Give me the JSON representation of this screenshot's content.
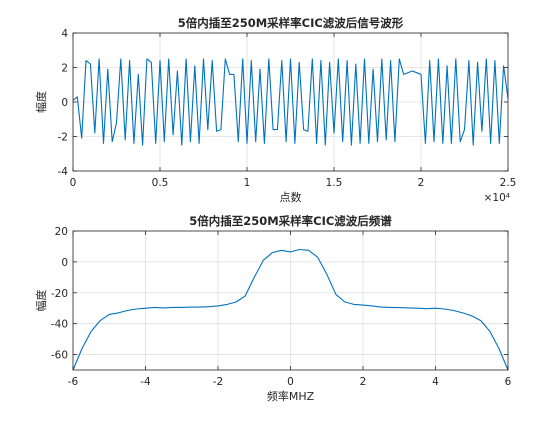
{
  "chart_data": [
    {
      "type": "line",
      "title": "5倍内插至250M采样率CIC滤波后信号波形",
      "xlabel": "点数",
      "ylabel": "幅度",
      "x_exponent_label": "×10⁴",
      "xlim": [
        0,
        25000
      ],
      "ylim": [
        -4,
        4
      ],
      "x_ticks": [
        0,
        5000,
        10000,
        15000,
        20000,
        25000
      ],
      "x_tick_labels": [
        "0",
        "0.5",
        "1",
        "1.5",
        "2",
        "2.5"
      ],
      "y_ticks": [
        -4,
        -2,
        0,
        2,
        4
      ],
      "y_tick_labels": [
        "-4",
        "-2",
        "0",
        "2",
        "4"
      ],
      "grid": true,
      "series_color": "#0072BD",
      "series": [
        {
          "description": "oscillating waveform between about -2.5 and 2.5, near 0 for x<500, with short flat segments near ±1.6",
          "x": [
            0,
            250,
            500,
            750,
            1000,
            1250,
            1500,
            1750,
            2000,
            2250,
            2500,
            2750,
            3000,
            3250,
            3500,
            3750,
            4000,
            4250,
            4500,
            4750,
            5000,
            5250,
            5500,
            5750,
            6000,
            6250,
            6500,
            6750,
            7000,
            7250,
            7500,
            7750,
            8000,
            8250,
            8500,
            8750,
            9000,
            9250,
            9500,
            9750,
            10000,
            10250,
            10500,
            10750,
            11000,
            11250,
            11500,
            11750,
            12000,
            12250,
            12500,
            12750,
            13000,
            13250,
            13500,
            13750,
            14000,
            14250,
            14500,
            14750,
            15000,
            15250,
            15500,
            15750,
            16000,
            16250,
            16500,
            16750,
            17000,
            17250,
            17500,
            17750,
            18000,
            18250,
            18500,
            18750,
            19000,
            19250,
            19500,
            19750,
            20000,
            20250,
            20500,
            20750,
            21000,
            21250,
            21500,
            21750,
            22000,
            22250,
            22500,
            22750,
            23000,
            23250,
            23500,
            23750,
            24000,
            24250,
            24500,
            24750,
            25000
          ],
          "y": [
            0.1,
            0.3,
            -2.1,
            2.4,
            2.2,
            -1.8,
            2.5,
            -2.4,
            1.9,
            -2.3,
            -1.2,
            2.5,
            -2.2,
            2.4,
            -2.4,
            1.6,
            -2.5,
            2.5,
            2.3,
            -2.4,
            2.4,
            -2.3,
            2.5,
            -1.9,
            1.8,
            -2.5,
            2.5,
            -2.3,
            2.1,
            -2.4,
            2.5,
            -1.6,
            2.4,
            -1.7,
            -1.6,
            2.5,
            1.6,
            1.6,
            -2.3,
            2.5,
            -2.4,
            2.4,
            -2.3,
            1.9,
            -2.4,
            2.5,
            -1.6,
            -1.6,
            2.4,
            -2.3,
            2.5,
            -2.4,
            2.3,
            -1.6,
            -1.7,
            2.5,
            -2.4,
            2.4,
            -2.5,
            2.3,
            -1.8,
            2.5,
            -2.3,
            2.4,
            -2.5,
            2.2,
            -2.4,
            2.5,
            -2.4,
            1.9,
            -2.3,
            2.5,
            -2.2,
            2.4,
            -2.3,
            2.5,
            1.6,
            1.7,
            1.8,
            1.7,
            1.6,
            -2.4,
            2.4,
            -2.3,
            2.5,
            -2.4,
            2.1,
            -2.4,
            2.5,
            -2.3,
            -1.6,
            2.4,
            -2.5,
            2.3,
            -1.7,
            2.5,
            -2.4,
            2.4,
            -2.4,
            2.1,
            0.2
          ]
        }
      ]
    },
    {
      "type": "line",
      "title": "5倍内插至250M采样率CIC滤波后频谱",
      "xlabel": "频率MHZ",
      "ylabel": "幅度",
      "xlim": [
        -6,
        6
      ],
      "ylim": [
        -70,
        20
      ],
      "x_ticks": [
        -6,
        -4,
        -2,
        0,
        2,
        4,
        6
      ],
      "x_tick_labels": [
        "-6",
        "-4",
        "-2",
        "0",
        "2",
        "4",
        "6"
      ],
      "y_ticks": [
        -60,
        -40,
        -20,
        0,
        20
      ],
      "y_tick_labels": [
        "-60",
        "-40",
        "-20",
        "0",
        "20"
      ],
      "grid": true,
      "series_color": "#0072BD",
      "series": [
        {
          "x": [
            -6,
            -5.75,
            -5.5,
            -5.25,
            -5.0,
            -4.75,
            -4.5,
            -4.25,
            -4.0,
            -3.75,
            -3.5,
            -3.25,
            -3.0,
            -2.75,
            -2.5,
            -2.25,
            -2.0,
            -1.75,
            -1.5,
            -1.25,
            -1.0,
            -0.75,
            -0.5,
            -0.25,
            0.0,
            0.25,
            0.5,
            0.75,
            1.0,
            1.25,
            1.5,
            1.75,
            2.0,
            2.25,
            2.5,
            2.75,
            3.0,
            3.25,
            3.5,
            3.75,
            4.0,
            4.25,
            4.5,
            4.75,
            5.0,
            5.25,
            5.5,
            5.75,
            6.0
          ],
          "y": [
            -70,
            -56,
            -45,
            -38,
            -34,
            -33,
            -31.5,
            -30.5,
            -30,
            -29.5,
            -29.8,
            -29.5,
            -29.5,
            -29.3,
            -29.3,
            -29,
            -28.5,
            -27.5,
            -26,
            -22,
            -10,
            1,
            6,
            7.5,
            6.5,
            8,
            7.5,
            3,
            -8,
            -21,
            -26,
            -27.5,
            -28,
            -28.5,
            -29.3,
            -29.5,
            -29.6,
            -29.8,
            -30,
            -30.3,
            -30,
            -30.5,
            -31.5,
            -33,
            -35,
            -38,
            -45,
            -56,
            -70
          ]
        }
      ]
    }
  ]
}
